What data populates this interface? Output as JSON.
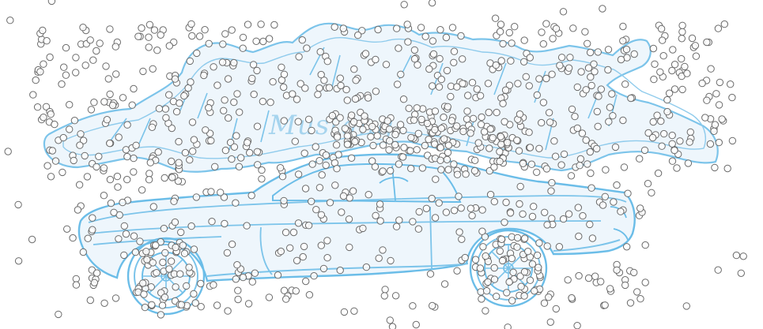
{
  "scene": {
    "description_free": true,
    "logo_text": "Mustang",
    "colors": {
      "background": "#ffffff",
      "outline": "#7cc4ea",
      "outline_dark": "#5fb4e3",
      "fill": "#eef6fc",
      "dot_stroke": "#6a6a6a",
      "dot_fill": "#ffffff"
    },
    "icon_names": [
      "car-icon",
      "horse-icon",
      "wheel-icon"
    ]
  }
}
